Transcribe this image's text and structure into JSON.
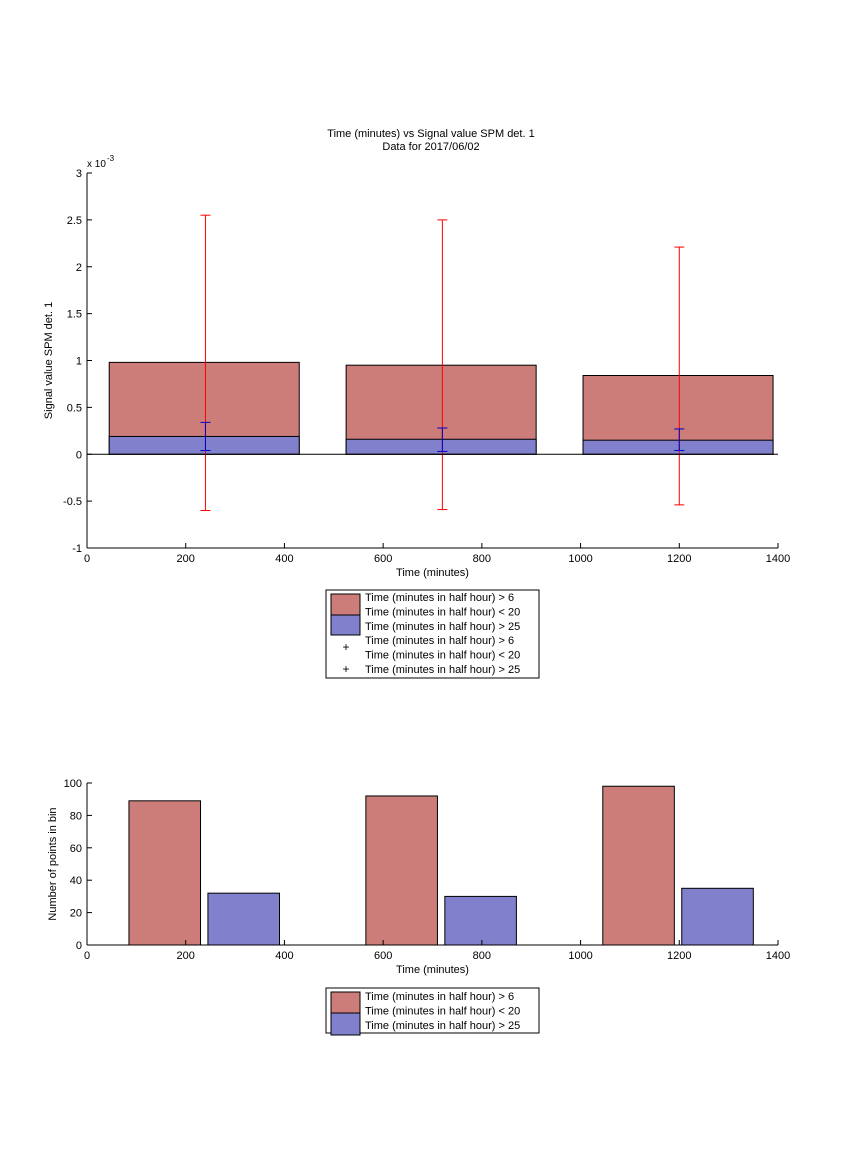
{
  "colors": {
    "series_a_fill": "#cc7d7a",
    "series_b_fill": "#8080cc",
    "series_a_err": "#ff0000",
    "series_b_err": "#0000cc",
    "axis": "#000000"
  },
  "chart_data": [
    {
      "type": "bar",
      "title": "Time (minutes) vs Signal value SPM det. 1",
      "subtitle": "Data for 2017/06/02",
      "xlabel": "Time (minutes)",
      "ylabel": "Signal value SPM det. 1",
      "y_exponent_label": "x 10",
      "y_exponent_power": "-3",
      "xlim": [
        0,
        1400
      ],
      "ylim": [
        -1,
        3
      ],
      "y_scale_note": "x 10^-3",
      "x_ticks": [
        "0",
        "200",
        "400",
        "600",
        "800",
        "1000",
        "1200",
        "1400"
      ],
      "y_ticks": [
        "-1",
        "-0.5",
        "0",
        "0.5",
        "1",
        "1.5",
        "2",
        "2.5",
        "3"
      ],
      "grid": false,
      "legend_position": "below",
      "legend": {
        "entries": [
          "Time (minutes in half hour) > 6",
          "Time (minutes in half hour) < 20",
          "Time (minutes in half hour) > 25",
          "Time (minutes in half hour) > 6",
          "Time (minutes in half hour) < 20",
          "Time (minutes in half hour) > 25"
        ]
      },
      "bins": [
        {
          "x_start": 45,
          "x_end": 430,
          "center": 240
        },
        {
          "x_start": 525,
          "x_end": 910,
          "center": 720
        },
        {
          "x_start": 1005,
          "x_end": 1390,
          "center": 1200
        }
      ],
      "series": [
        {
          "values": [
            0.98,
            0.95,
            0.84
          ],
          "err_low": [
            -0.6,
            -0.59,
            -0.54
          ],
          "err_high": [
            2.55,
            2.5,
            2.21
          ]
        },
        {
          "values": [
            0.19,
            0.16,
            0.15
          ],
          "err_low": [
            0.04,
            0.03,
            0.04
          ],
          "err_high": [
            0.34,
            0.28,
            0.27
          ]
        }
      ]
    },
    {
      "type": "bar",
      "xlabel": "Time (minutes)",
      "ylabel": "Number of points in bin",
      "xlim": [
        0,
        1400
      ],
      "ylim": [
        0,
        100
      ],
      "x_ticks": [
        "0",
        "200",
        "400",
        "600",
        "800",
        "1000",
        "1200",
        "1400"
      ],
      "y_ticks": [
        "0",
        "20",
        "40",
        "60",
        "80",
        "100"
      ],
      "grid": false,
      "legend_position": "below",
      "legend": {
        "entries": [
          "Time (minutes in half hour) > 6",
          "Time (minutes in half hour) < 20",
          "Time (minutes in half hour) > 25"
        ]
      },
      "bars": [
        {
          "series": 0,
          "x_start": 85,
          "x_end": 230,
          "value": 89
        },
        {
          "series": 1,
          "x_start": 245,
          "x_end": 390,
          "value": 32
        },
        {
          "series": 0,
          "x_start": 565,
          "x_end": 710,
          "value": 92
        },
        {
          "series": 1,
          "x_start": 725,
          "x_end": 870,
          "value": 30
        },
        {
          "series": 0,
          "x_start": 1045,
          "x_end": 1190,
          "value": 98
        },
        {
          "series": 1,
          "x_start": 1205,
          "x_end": 1350,
          "value": 35
        }
      ]
    }
  ]
}
